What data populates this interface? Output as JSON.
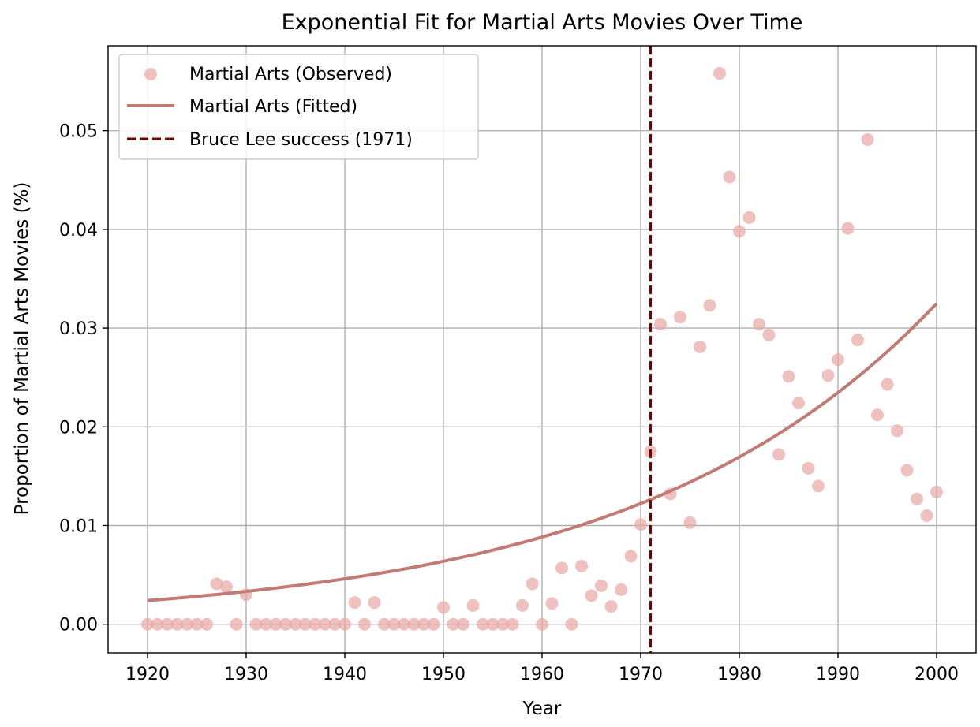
{
  "chart_data": {
    "type": "scatter",
    "title": "Exponential Fit for Martial Arts Movies Over Time",
    "xlabel": "Year",
    "ylabel": "Proportion of Martial Arts Movies (%)",
    "xlim": [
      1916,
      2004
    ],
    "ylim": [
      -0.0029,
      0.0586
    ],
    "x_ticks": [
      1920,
      1930,
      1940,
      1950,
      1960,
      1970,
      1980,
      1990,
      2000
    ],
    "y_ticks": [
      0.0,
      0.01,
      0.02,
      0.03,
      0.04,
      0.05
    ],
    "y_tick_labels": [
      "0.00",
      "0.01",
      "0.02",
      "0.03",
      "0.04",
      "0.05"
    ],
    "grid": true,
    "legend_position": "upper-left",
    "series": [
      {
        "name": "Martial Arts (Observed)",
        "kind": "scatter",
        "color": "#e8a7a3",
        "x": [
          1920,
          1921,
          1922,
          1923,
          1924,
          1925,
          1926,
          1927,
          1928,
          1929,
          1930,
          1931,
          1932,
          1933,
          1934,
          1935,
          1936,
          1937,
          1938,
          1939,
          1940,
          1941,
          1942,
          1943,
          1944,
          1945,
          1946,
          1947,
          1948,
          1949,
          1950,
          1951,
          1952,
          1953,
          1954,
          1955,
          1956,
          1957,
          1958,
          1959,
          1960,
          1961,
          1962,
          1963,
          1964,
          1965,
          1966,
          1967,
          1968,
          1969,
          1970,
          1971,
          1972,
          1973,
          1974,
          1975,
          1976,
          1977,
          1978,
          1979,
          1980,
          1981,
          1982,
          1983,
          1984,
          1985,
          1986,
          1987,
          1988,
          1989,
          1990,
          1991,
          1992,
          1993,
          1994,
          1995,
          1996,
          1997,
          1998,
          1999,
          2000
        ],
        "y": [
          0,
          0,
          0,
          0,
          0,
          0,
          0,
          0.0041,
          0.0038,
          0,
          0.003,
          0,
          0,
          0,
          0,
          0,
          0,
          0,
          0,
          0,
          0,
          0.0022,
          0,
          0.0022,
          0,
          0,
          0,
          0,
          0,
          0,
          0.0017,
          0,
          0,
          0.0019,
          0,
          0,
          0,
          0,
          0.0019,
          0.0041,
          0,
          0.0021,
          0.0057,
          0,
          0.0059,
          0.0029,
          0.0039,
          0.0018,
          0.0035,
          0.0069,
          0.0101,
          0.0175,
          0.0304,
          0.0132,
          0.0311,
          0.0103,
          0.0281,
          0.0323,
          0.0558,
          0.0453,
          0.0398,
          0.0412,
          0.0304,
          0.0293,
          0.0172,
          0.0251,
          0.0224,
          0.0158,
          0.014,
          0.0252,
          0.0268,
          0.0401,
          0.0288,
          0.0491,
          0.0212,
          0.0243,
          0.0196,
          0.0156,
          0.0127,
          0.011,
          0.0134
        ]
      },
      {
        "name": "Martial Arts (Fitted)",
        "kind": "line",
        "color": "#c17b74",
        "model": "exponential",
        "x_range": [
          1920,
          2000
        ],
        "y_at_start": 0.0024,
        "y_at_end": 0.0325
      },
      {
        "name": "Bruce Lee success (1971)",
        "kind": "vline",
        "color": "#7a0000",
        "x": 1971
      }
    ]
  }
}
